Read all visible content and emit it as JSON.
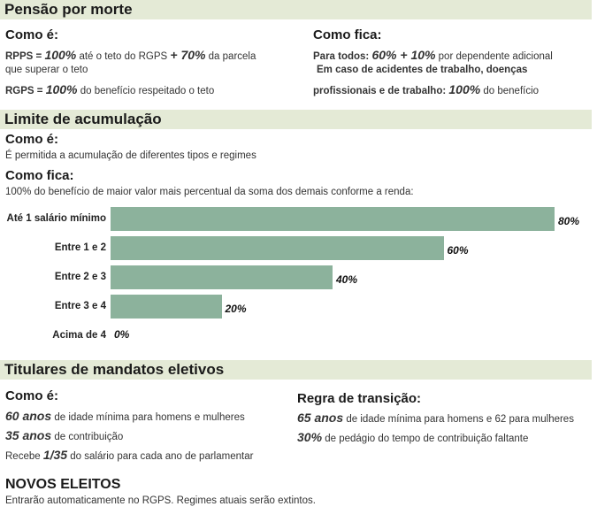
{
  "sections": {
    "pensao": {
      "title": "Pensão por morte",
      "como_e": {
        "heading": "Como é:",
        "line1_a": "RPPS = ",
        "line1_b": "100%",
        "line1_c": " até o teto do RGPS ",
        "line1_d": "+ 70%",
        "line1_e": " da parcela",
        "line2": "que superar o teto",
        "line3_a": "RGPS = ",
        "line3_b": "100%",
        "line3_c": " do benefício respeitado o teto"
      },
      "como_fica": {
        "heading": "Como fica:",
        "line1_a": "Para todos: ",
        "line1_b": "60% + 10%",
        "line1_c": " por dependente adicional",
        "line2": "Em caso de acidentes de trabalho, doenças",
        "line3_a": "profissionais e de trabalho: ",
        "line3_b": "100%",
        "line3_c": " do benefício"
      }
    },
    "limite": {
      "title": "Limite de acumulação",
      "como_e_heading": "Como é:",
      "como_e_text": "É permitida a acumulação de diferentes tipos e regimes",
      "como_fica_heading": "Como fica:",
      "como_fica_text": "100% do benefício de maior valor mais percentual da soma dos demais conforme a renda:"
    },
    "titulares": {
      "title": "Titulares de mandatos eletivos",
      "como_e": {
        "heading": "Como é:",
        "l1_a": "60 anos",
        "l1_b": " de idade mínima para homens e mulheres",
        "l2_a": "35 anos",
        "l2_b": " de contribuição",
        "l3_a": "Recebe ",
        "l3_b": "1/35",
        "l3_c": " do salário para cada ano de parlamentar"
      },
      "regra": {
        "heading": "Regra de transição:",
        "l1_a": "65 anos",
        "l1_b": " de idade mínima para homens e 62 para mulheres",
        "l2_a": "30%",
        "l2_b": " de pedágio do tempo de contribuição faltante"
      }
    },
    "novos": {
      "title": "NOVOS ELEITOS",
      "text": "Entrarão automaticamente no RGPS. Regimes atuais serão extintos."
    }
  },
  "chart_data": {
    "type": "bar",
    "orientation": "horizontal",
    "categories": [
      "Até 1 salário mínimo",
      "Entre 1 e 2",
      "Entre 2 e 3",
      "Entre 3 e 4",
      "Acima de 4"
    ],
    "values": [
      80,
      60,
      40,
      20,
      0
    ],
    "value_labels": [
      "80%",
      "60%",
      "40%",
      "20%",
      "0%"
    ],
    "xlim": [
      0,
      80
    ],
    "bar_color": "#8cb29c",
    "grid": false
  }
}
